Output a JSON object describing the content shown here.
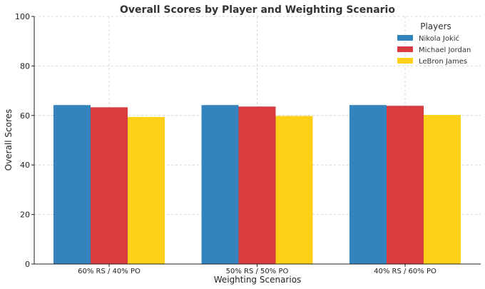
{
  "chart_data": {
    "type": "bar",
    "title": "Overall Scores by Player and Weighting Scenario",
    "xlabel": "Weighting Scenarios",
    "ylabel": "Overall Scores",
    "categories": [
      "60% RS / 40% PO",
      "50% RS / 50% PO",
      "40% RS / 60% PO"
    ],
    "series": [
      {
        "name": "Nikola Jokić",
        "color": "#3583be",
        "values": [
          64.2,
          64.2,
          64.2
        ]
      },
      {
        "name": "Michael Jordan",
        "color": "#d93c3f",
        "values": [
          63.3,
          63.6,
          63.9
        ]
      },
      {
        "name": "LeBron James",
        "color": "#fed118",
        "values": [
          59.4,
          59.8,
          60.2
        ]
      }
    ],
    "ylim": [
      0,
      100
    ],
    "yticks": [
      0,
      20,
      40,
      60,
      80,
      100
    ],
    "grid": true,
    "legend": {
      "title": "Players",
      "placement": "top-right"
    }
  }
}
